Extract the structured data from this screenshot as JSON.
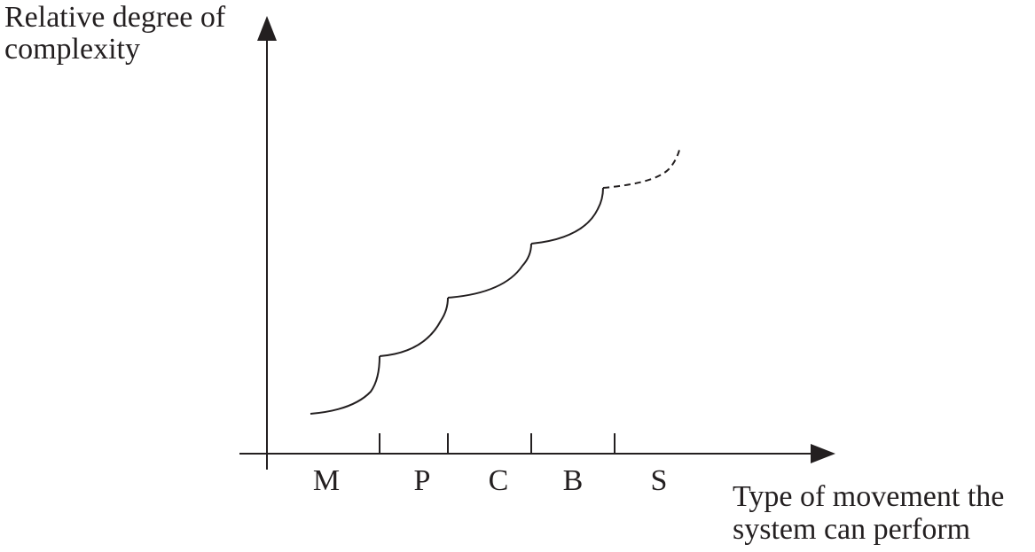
{
  "y_axis_label": {
    "lines": [
      "Relative degree of",
      "complexity"
    ]
  },
  "x_axis_label": {
    "lines": [
      "Type of movement the",
      "system can perform"
    ]
  },
  "categories": [
    "M",
    "P",
    "C",
    "B",
    "S"
  ]
}
